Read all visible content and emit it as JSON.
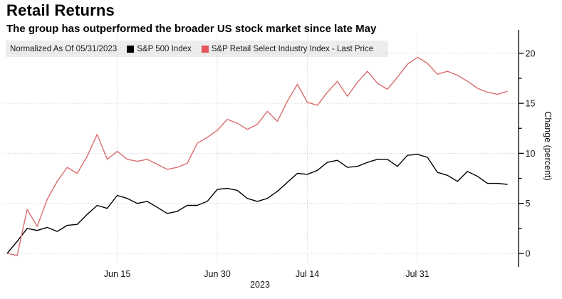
{
  "header": {
    "title": "Retail Returns",
    "subtitle": "The group has outperformed the broader US stock market since late May"
  },
  "legend": {
    "note": "Normalized As Of 05/31/2023",
    "series": [
      {
        "label": "S&P 500 Index",
        "color": "#000000"
      },
      {
        "label": "S&P Retail Select Industry Index - Last Price",
        "color": "#e7545c"
      }
    ]
  },
  "chart_data": {
    "type": "line",
    "title": "Retail Returns",
    "subtitle": "The group has outperformed the broader US stock market since late May",
    "xlabel": "2023",
    "ylabel": "Change (percent)",
    "ylim": [
      -1.4,
      22.2
    ],
    "grid": true,
    "legend_position": "top",
    "y_ticks": [
      0,
      5,
      10,
      15,
      20
    ],
    "y_minor_ticks": [
      2.5,
      7.5,
      12.5,
      17.5
    ],
    "x_ticks": [
      {
        "label": "Jun 15",
        "index": 11
      },
      {
        "label": "Jun 30",
        "index": 21
      },
      {
        "label": "Jul 14",
        "index": 30
      },
      {
        "label": "Jul 31",
        "index": 41
      }
    ],
    "x_axis_year_label": "2023",
    "x": [
      "05/31",
      "06/01",
      "06/02",
      "06/05",
      "06/06",
      "06/07",
      "06/08",
      "06/09",
      "06/12",
      "06/13",
      "06/14",
      "06/15",
      "06/16",
      "06/20",
      "06/21",
      "06/22",
      "06/23",
      "06/26",
      "06/27",
      "06/28",
      "06/29",
      "06/30",
      "07/03",
      "07/05",
      "07/06",
      "07/07",
      "07/10",
      "07/11",
      "07/12",
      "07/13",
      "07/14",
      "07/17",
      "07/18",
      "07/19",
      "07/20",
      "07/21",
      "07/24",
      "07/25",
      "07/26",
      "07/27",
      "07/28",
      "07/31",
      "08/01",
      "08/02",
      "08/03",
      "08/04",
      "08/07",
      "08/08",
      "08/09",
      "08/10",
      "08/11"
    ],
    "series": [
      {
        "name": "S&P 500 Index",
        "color": "#000000",
        "values": [
          0,
          1.2,
          2.5,
          2.3,
          2.6,
          2.2,
          2.8,
          2.9,
          3.9,
          4.8,
          4.5,
          5.8,
          5.5,
          5.0,
          5.2,
          4.6,
          4.0,
          4.2,
          4.8,
          4.8,
          5.2,
          6.4,
          6.5,
          6.3,
          5.5,
          5.2,
          5.5,
          6.2,
          7.1,
          8.0,
          7.9,
          8.3,
          9.1,
          9.3,
          8.6,
          8.7,
          9.1,
          9.4,
          9.4,
          8.7,
          9.8,
          9.9,
          9.6,
          8.1,
          7.8,
          7.2,
          8.2,
          7.7,
          7.0,
          7.0,
          6.9
        ]
      },
      {
        "name": "S&P Retail Select Industry Index - Last Price",
        "color": "#da6d6e",
        "values": [
          0,
          -0.2,
          4.4,
          2.7,
          5.4,
          7.2,
          8.6,
          8.0,
          9.7,
          11.9,
          9.4,
          10.2,
          9.4,
          9.2,
          9.4,
          8.9,
          8.4,
          8.6,
          9.0,
          11.0,
          11.6,
          12.3,
          13.4,
          13.0,
          12.4,
          12.9,
          14.2,
          13.2,
          15.2,
          16.9,
          15.1,
          14.8,
          16.1,
          17.2,
          15.7,
          17.1,
          18.2,
          17.0,
          16.4,
          17.6,
          18.9,
          19.6,
          19.0,
          17.9,
          18.2,
          17.8,
          17.2,
          16.5,
          16.1,
          15.9,
          16.2
        ]
      }
    ]
  }
}
